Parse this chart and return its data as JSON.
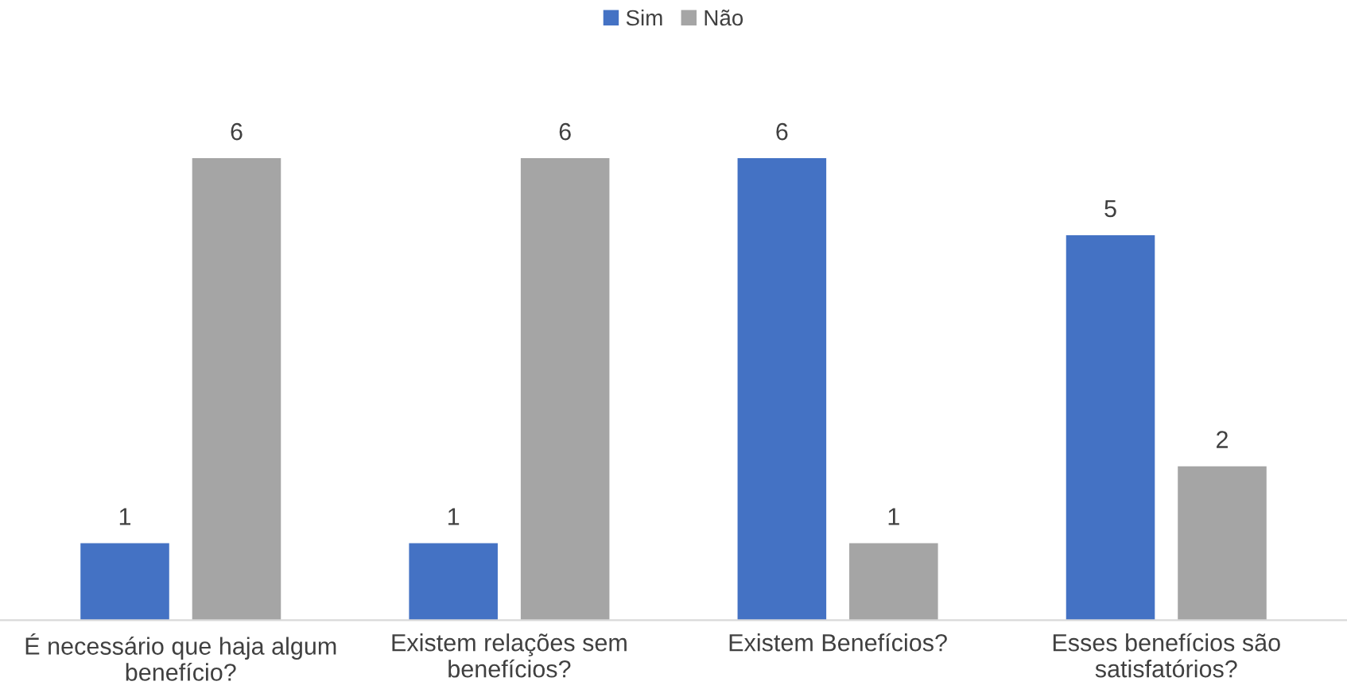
{
  "chart_data": {
    "type": "bar",
    "categories": [
      "É necessário que haja algum\nbenefício?",
      "Existem relações sem\nbenefícios?",
      "Existem Benefícios?",
      "Esses benefícios são\nsatisfatórios?"
    ],
    "series": [
      {
        "name": "Sim",
        "color": "#4472c4",
        "values": [
          1,
          1,
          6,
          5
        ]
      },
      {
        "name": "Não",
        "color": "#a5a5a5",
        "values": [
          6,
          6,
          1,
          2
        ]
      }
    ],
    "data_labels": true,
    "legend": "top",
    "grid": false
  }
}
